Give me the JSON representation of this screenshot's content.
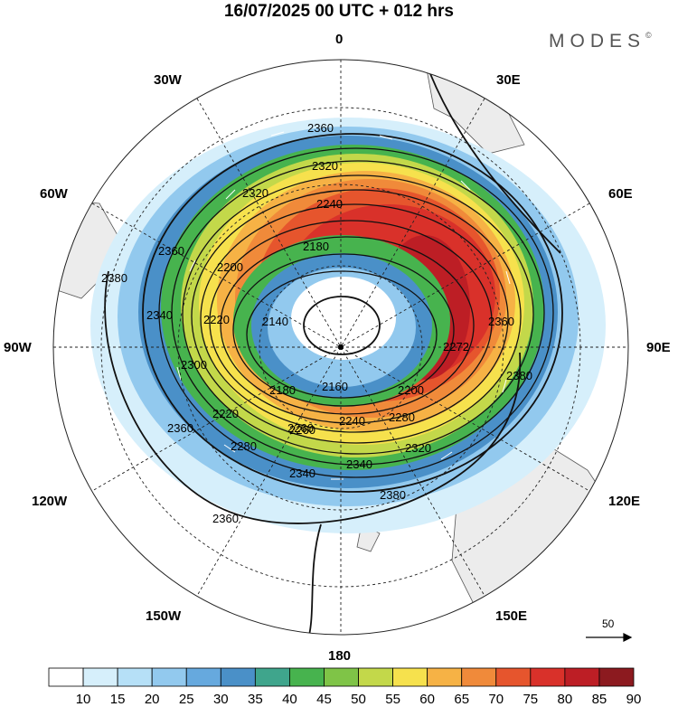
{
  "header": {
    "title": "16/07/2025  00 UTC  + 012 hrs",
    "brand": "MODES",
    "brand_mark": "©"
  },
  "map": {
    "projection": "south-polar-stereographic",
    "longitude_labels": [
      "0",
      "30E",
      "60E",
      "90E",
      "120E",
      "150E",
      "180",
      "150W",
      "120W",
      "90W",
      "60W",
      "30W"
    ],
    "contour_labels": [
      "2380",
      "2360",
      "2340",
      "2320",
      "2300",
      "2280",
      "2260",
      "2240",
      "2220",
      "2200",
      "2180",
      "2160",
      "2140"
    ],
    "inline_labels": [
      {
        "text": "2360"
      },
      {
        "text": "2320"
      },
      {
        "text": "2320"
      },
      {
        "text": "2240"
      },
      {
        "text": "2200"
      },
      {
        "text": "2360"
      },
      {
        "text": "2180"
      },
      {
        "text": "2260"
      },
      {
        "text": "2380"
      },
      {
        "text": "2340"
      },
      {
        "text": "2140"
      },
      {
        "text": "2220"
      },
      {
        "text": "2300"
      },
      {
        "text": "2280"
      },
      {
        "text": "2360"
      },
      {
        "text": "2180"
      },
      {
        "text": "2160"
      },
      {
        "text": "2200"
      },
      {
        "text": "2220"
      },
      {
        "text": "2240"
      },
      {
        "text": "2260"
      },
      {
        "text": "2280"
      },
      {
        "text": "2340"
      },
      {
        "text": "2320"
      },
      {
        "text": "2340"
      },
      {
        "text": "2380"
      },
      {
        "text": "2360"
      },
      {
        "text": "2380"
      },
      {
        "text": "2360"
      },
      {
        "text": "2272"
      }
    ]
  },
  "colorbar": {
    "ticks": [
      "10",
      "15",
      "20",
      "25",
      "30",
      "35",
      "40",
      "45",
      "50",
      "55",
      "60",
      "65",
      "70",
      "75",
      "80",
      "85",
      "90"
    ],
    "colors": [
      "#ffffff",
      "#d6effb",
      "#b6e0f7",
      "#92c9ee",
      "#66a9de",
      "#4a90c8",
      "#3fa58c",
      "#47b34e",
      "#7fc447",
      "#c3d84a",
      "#f6e14d",
      "#f6b245",
      "#f08a3a",
      "#e6552d",
      "#d9312a",
      "#bd1e25",
      "#8c1a1f"
    ]
  },
  "reference_vector": {
    "label": "50"
  }
}
